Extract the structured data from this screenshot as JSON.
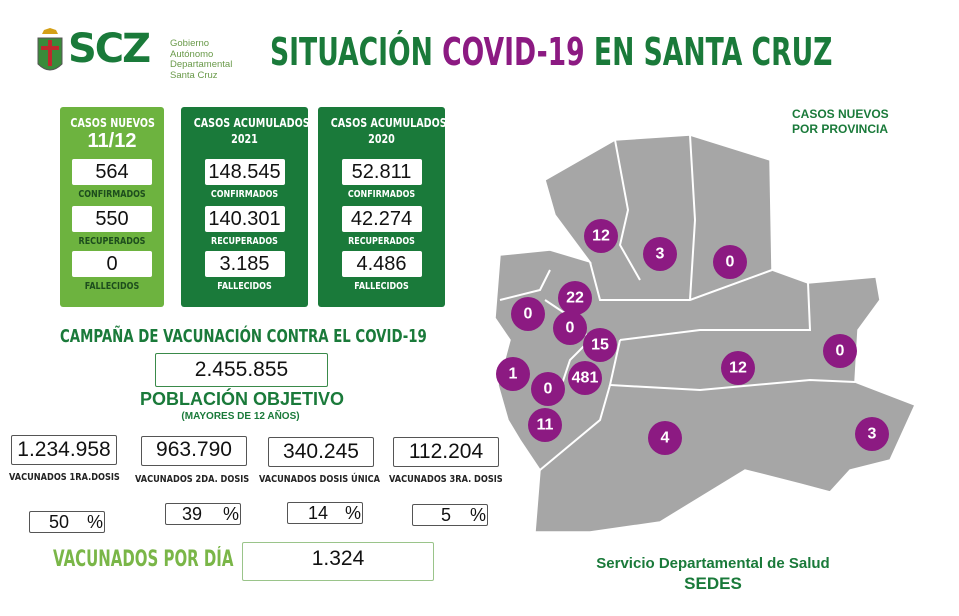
{
  "logo": {
    "text": "SCZ",
    "subtitle": [
      "Gobierno",
      "Autónomo",
      "Departamental",
      "Santa Cruz"
    ]
  },
  "title": {
    "part1": "SITUACIÓN",
    "part2": "COVID-19",
    "part3": "EN SANTA CRUZ"
  },
  "cards": [
    {
      "heading": "CASOS NUEVOS",
      "sub": "11/12",
      "confirmados": "564",
      "recuperados": "550",
      "fallecidos": "0",
      "color": "#6db33f"
    },
    {
      "heading": "CASOS ACUMULADOS",
      "sub": "2021",
      "confirmados": "148.545",
      "recuperados": "140.301",
      "fallecidos": "3.185",
      "color": "#1a7a3a"
    },
    {
      "heading": "CASOS ACUMULADOS",
      "sub": "2020",
      "confirmados": "52.811",
      "recuperados": "42.274",
      "fallecidos": "4.486",
      "color": "#1a7a3a"
    }
  ],
  "labels": {
    "confirmados": "CONFIRMADOS",
    "recuperados": "RECUPERADOS",
    "fallecidos": "FALLECIDOS"
  },
  "vaccination": {
    "heading": "CAMPAÑA DE VACUNACIÓN CONTRA EL COVID-19",
    "target": "2.455.855",
    "target_label": "POBLACIÓN OBJETIVO",
    "target_note": "(MAYORES DE 12 AÑOS)",
    "doses": [
      {
        "value": "1.234.958",
        "label": "VACUNADOS 1RA.DOSIS",
        "pct": "50"
      },
      {
        "value": "963.790",
        "label": "VACUNADOS 2DA. DOSIS",
        "pct": "39"
      },
      {
        "value": "340.245",
        "label": "VACUNADOS DOSIS ÚNICA",
        "pct": "14"
      },
      {
        "value": "112.204",
        "label": "VACUNADOS 3RA. DOSIS",
        "pct": "5"
      }
    ],
    "pct_sign": "%",
    "per_day_label": "VACUNADOS POR DÍA",
    "per_day": "1.324"
  },
  "map": {
    "title_line1": "CASOS NUEVOS",
    "title_line2": "POR PROVINCIA",
    "marker_color": "#8c1a82",
    "region_color": "#a6a6a6",
    "markers": [
      "12",
      "3",
      "0",
      "22",
      "0",
      "0",
      "15",
      "1",
      "0",
      "481",
      "12",
      "0",
      "11",
      "4",
      "3"
    ]
  },
  "footer": {
    "line1": "Servicio Departamental de Salud",
    "line2": "SEDES"
  }
}
